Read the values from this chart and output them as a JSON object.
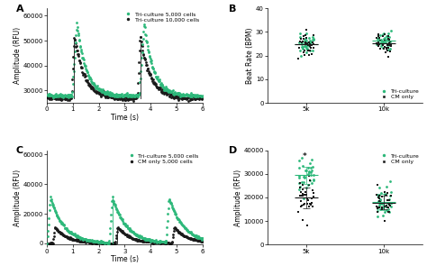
{
  "teal": "#2db87a",
  "black": "#1a1a1a",
  "gray": "#888888",
  "panel_A": {
    "label": "A",
    "legend": [
      "Tri-culture 5,000 cells",
      "Tri-culture 10,000 cells"
    ],
    "xlabel": "Time (s)",
    "ylabel": "Amplitude (RFU)",
    "xlim": [
      0,
      6
    ],
    "ylim": [
      25000,
      63000
    ],
    "yticks": [
      30000,
      40000,
      50000,
      60000
    ],
    "xticks": [
      0,
      1,
      2,
      3,
      4,
      5,
      6
    ]
  },
  "panel_B": {
    "label": "B",
    "legend": [
      "Tri-culture",
      "CM only"
    ],
    "ylabel": "Beat Rate (BPM)",
    "ylim": [
      0,
      40
    ],
    "yticks": [
      0,
      10,
      20,
      30,
      40
    ],
    "xticklabels": [
      "5k",
      "10k"
    ]
  },
  "panel_C": {
    "label": "C",
    "legend": [
      "Tri-culture 5,000 cells",
      "CM only 5,000 cells"
    ],
    "xlabel": "Time (s)",
    "ylabel": "Amplitude (RFU)",
    "xlim": [
      0,
      6
    ],
    "ylim": [
      -1000,
      63000
    ],
    "yticks": [
      0,
      20000,
      40000,
      60000
    ],
    "xticks": [
      0,
      1,
      2,
      3,
      4,
      5,
      6
    ]
  },
  "panel_D": {
    "label": "D",
    "legend": [
      "Tri-culture",
      "CM only"
    ],
    "ylabel": "Amplitude (RFU)",
    "ylim": [
      0,
      40000
    ],
    "yticks": [
      0,
      10000,
      20000,
      30000,
      40000
    ],
    "xticklabels": [
      "5k",
      "10k"
    ]
  }
}
